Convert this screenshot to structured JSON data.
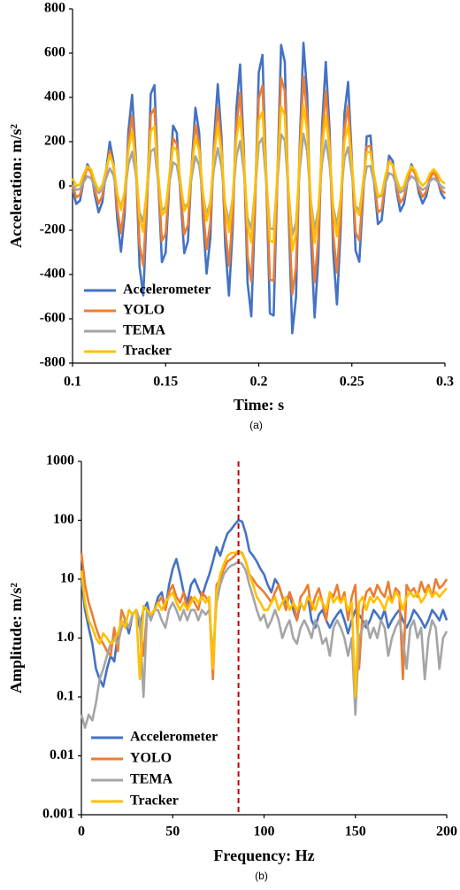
{
  "chart_data": [
    {
      "type": "line",
      "caption": "(a)",
      "x_label": "Time: s",
      "y_label": "Acceleration: m/s²",
      "xlim": [
        0.1,
        0.3
      ],
      "xticks": [
        0.1,
        0.15,
        0.2,
        0.25,
        0.3
      ],
      "ylim": [
        -800,
        800
      ],
      "yticks": [
        -800,
        -600,
        -400,
        -200,
        0,
        200,
        400,
        600,
        800
      ],
      "grid": false,
      "log_y": false,
      "legend": "lower-left",
      "x": [
        0.1,
        0.102,
        0.104,
        0.106,
        0.108,
        0.11,
        0.112,
        0.114,
        0.116,
        0.118,
        0.12,
        0.122,
        0.124,
        0.126,
        0.128,
        0.13,
        0.132,
        0.134,
        0.136,
        0.138,
        0.14,
        0.142,
        0.144,
        0.146,
        0.148,
        0.15,
        0.152,
        0.154,
        0.156,
        0.158,
        0.16,
        0.162,
        0.164,
        0.166,
        0.168,
        0.17,
        0.172,
        0.174,
        0.176,
        0.178,
        0.18,
        0.182,
        0.184,
        0.186,
        0.188,
        0.19,
        0.192,
        0.194,
        0.196,
        0.198,
        0.2,
        0.202,
        0.204,
        0.206,
        0.208,
        0.21,
        0.212,
        0.214,
        0.216,
        0.218,
        0.22,
        0.222,
        0.224,
        0.226,
        0.228,
        0.23,
        0.232,
        0.234,
        0.236,
        0.238,
        0.24,
        0.242,
        0.244,
        0.246,
        0.248,
        0.25,
        0.252,
        0.254,
        0.256,
        0.258,
        0.26,
        0.262,
        0.264,
        0.266,
        0.268,
        0.27,
        0.272,
        0.274,
        0.276,
        0.278,
        0.28,
        0.282,
        0.284,
        0.286,
        0.288,
        0.29,
        0.292,
        0.294,
        0.296,
        0.298,
        0.3
      ],
      "series": [
        {
          "name": "Accelerometer",
          "color": "#4472c4",
          "values": [
            -13,
            -81,
            -66,
            26,
            98,
            68,
            -41,
            -119,
            -73,
            66,
            200,
            108,
            -146,
            -297,
            -126,
            247,
            412,
            124,
            -365,
            -494,
            -83,
            416,
            455,
            27,
            -344,
            -301,
            16,
            273,
            240,
            -48,
            -304,
            -248,
            95,
            353,
            241,
            -141,
            -396,
            -235,
            207,
            460,
            221,
            -269,
            -495,
            -192,
            351,
            549,
            157,
            -438,
            -589,
            -101,
            512,
            592,
            40,
            -576,
            -585,
            35,
            637,
            560,
            -112,
            -665,
            -504,
            184,
            647,
            416,
            -229,
            -594,
            -325,
            268,
            560,
            259,
            -302,
            -535,
            -192,
            325,
            470,
            119,
            -292,
            -342,
            -51,
            224,
            228,
            13,
            -172,
            -155,
            8,
            137,
            112,
            -21,
            -114,
            -80,
            27,
            98,
            59,
            -33,
            -79,
            -45,
            33,
            70,
            28,
            -34,
            -59
          ]
        },
        {
          "name": "YOLO",
          "color": "#ed7d31",
          "values": [
            0,
            -51,
            -40,
            30,
            84,
            61,
            -21,
            -79,
            -45,
            60,
            160,
            91,
            -100,
            -213,
            -85,
            195,
            319,
            103,
            -264,
            -361,
            -52,
            322,
            351,
            30,
            -248,
            -216,
            22,
            215,
            190,
            -26,
            -218,
            -176,
            81,
            275,
            191,
            -96,
            -287,
            -166,
            165,
            355,
            176,
            -192,
            -361,
            -134,
            273,
            422,
            128,
            -319,
            -432,
            -66,
            394,
            454,
            40,
            -422,
            -429,
            36,
            488,
            430,
            -74,
            -489,
            -368,
            148,
            495,
            322,
            -162,
            -436,
            -234,
            211,
            430,
            204,
            -217,
            -391,
            -134,
            254,
            363,
            99,
            -209,
            -247,
            -28,
            178,
            181,
            20,
            -119,
            -106,
            16,
            113,
            94,
            -6,
            -76,
            -50,
            30,
            84,
            54,
            -15,
            -49,
            -24,
            35,
            63,
            31,
            -16,
            -34
          ]
        },
        {
          "name": "TEMA",
          "color": "#a5a5a5",
          "values": [
            5,
            -18,
            -13,
            19,
            44,
            34,
            -4,
            -32,
            -16,
            33,
            80,
            48,
            -41,
            -94,
            -34,
            96,
            154,
            53,
            -118,
            -163,
            -19,
            156,
            169,
            19,
            -110,
            -95,
            16,
            106,
            94,
            -7,
            -96,
            -77,
            43,
            134,
            94,
            -39,
            -129,
            -72,
            82,
            171,
            87,
            -84,
            -163,
            -57,
            133,
            202,
            65,
            -143,
            -196,
            -25,
            189,
            217,
            24,
            -192,
            -195,
            22,
            233,
            206,
            -29,
            -223,
            -166,
            74,
            236,
            156,
            -70,
            -198,
            -104,
            104,
            206,
            101,
            -96,
            -177,
            -57,
            124,
            175,
            52,
            -92,
            -110,
            -8,
            88,
            90,
            15,
            -50,
            -44,
            13,
            58,
            49,
            3,
            -30,
            -18,
            19,
            44,
            31,
            -2,
            -18,
            -6,
            22,
            35,
            20,
            -2,
            -11
          ]
        },
        {
          "name": "Tracker",
          "color": "#ffc000",
          "values": [
            34,
            0,
            7,
            53,
            89,
            74,
            20,
            -20,
            4,
            73,
            140,
            94,
            -33,
            -109,
            -23,
            164,
            246,
            102,
            -143,
            -207,
            -2,
            248,
            268,
            54,
            -132,
            -111,
            48,
            177,
            160,
            16,
            -112,
            -84,
            88,
            217,
            161,
            -31,
            -158,
            -78,
            144,
            270,
            151,
            -95,
            -208,
            -56,
            216,
            315,
            119,
            -179,
            -255,
            -11,
            296,
            336,
            60,
            -248,
            -253,
            58,
            359,
            320,
            -16,
            -293,
            -212,
            132,
            364,
            248,
            -75,
            -257,
            -123,
            174,
            320,
            170,
            -111,
            -228,
            -56,
            203,
            275,
            100,
            -106,
            -131,
            15,
            152,
            154,
            47,
            -46,
            -38,
            44,
            109,
            96,
            30,
            -17,
            0,
            54,
            89,
            70,
            24,
            1,
            18,
            57,
            75,
            54,
            23,
            11
          ]
        }
      ]
    },
    {
      "type": "line",
      "caption": "(b)",
      "x_label": "Frequency: Hz",
      "y_label": "Amplitude: m/s²",
      "xlim": [
        0,
        200
      ],
      "xticks": [
        0,
        50,
        100,
        150,
        200
      ],
      "ylim": [
        0.001,
        1000
      ],
      "yticks": [
        0.001,
        0.01,
        0.1,
        {
          "value": 1,
          "label": "1.0"
        },
        10,
        100,
        1000
      ],
      "grid": false,
      "log_y": true,
      "legend": "lower-left",
      "reference_line": {
        "x": 86,
        "color": "#c00000"
      },
      "x": [
        0,
        2,
        4,
        6,
        8,
        10,
        12,
        14,
        16,
        18,
        20,
        22,
        24,
        26,
        28,
        30,
        32,
        34,
        36,
        38,
        40,
        42,
        44,
        46,
        48,
        50,
        52,
        54,
        56,
        58,
        60,
        62,
        64,
        66,
        68,
        70,
        72,
        74,
        76,
        78,
        80,
        82,
        84,
        86,
        88,
        90,
        92,
        94,
        96,
        98,
        100,
        102,
        104,
        106,
        108,
        110,
        112,
        114,
        116,
        118,
        120,
        122,
        124,
        126,
        128,
        130,
        132,
        134,
        136,
        138,
        140,
        142,
        144,
        146,
        148,
        150,
        152,
        154,
        156,
        158,
        160,
        162,
        164,
        166,
        168,
        170,
        172,
        174,
        176,
        178,
        180,
        182,
        184,
        186,
        188,
        190,
        192,
        194,
        196,
        198,
        200
      ],
      "series": [
        {
          "name": "Accelerometer",
          "color": "#4472c4",
          "values": [
            10,
            3,
            1.5,
            0.8,
            0.3,
            0.2,
            0.15,
            0.3,
            0.5,
            0.4,
            1.2,
            1.5,
            2,
            1.2,
            2.5,
            3,
            1.5,
            3,
            4,
            2,
            3,
            5,
            6,
            3,
            8,
            15,
            22,
            12,
            6,
            4,
            8,
            10,
            7,
            5,
            8,
            12,
            20,
            35,
            25,
            40,
            60,
            70,
            85,
            100,
            95,
            60,
            30,
            25,
            20,
            15,
            12,
            8,
            6,
            10,
            8,
            5,
            4,
            6,
            3,
            2,
            4,
            3,
            5,
            2,
            1.5,
            2.5,
            3,
            2,
            1.5,
            2,
            2.5,
            3,
            2,
            1.2,
            2,
            3,
            2.5,
            2,
            1.5,
            2,
            3,
            2.5,
            2,
            3,
            1.5,
            2,
            2.5,
            3,
            2,
            1.5,
            2,
            3,
            2.5,
            2,
            1.5,
            2,
            3,
            2.5,
            2,
            3,
            2
          ]
        },
        {
          "name": "YOLO",
          "color": "#ed7d31",
          "values": [
            28,
            8,
            4,
            2.5,
            1.5,
            1,
            0.8,
            0.6,
            0.5,
            1.5,
            0.6,
            3,
            2,
            1.5,
            2.5,
            3,
            2,
            0.5,
            3,
            2.5,
            3,
            4,
            5,
            3,
            6,
            8,
            5,
            4,
            6,
            3,
            5,
            4,
            3,
            6,
            5,
            4,
            0.2,
            8,
            10,
            15,
            20,
            22,
            25,
            30,
            28,
            20,
            12,
            10,
            8,
            7,
            6,
            5,
            4,
            6,
            8,
            5,
            3,
            6,
            4,
            2,
            5,
            6,
            8,
            3,
            5,
            7,
            4,
            2,
            6,
            5,
            8,
            4,
            6,
            2,
            5,
            8,
            0.3,
            3,
            6,
            7,
            5,
            8,
            6,
            5,
            9,
            4,
            7,
            6,
            0.2,
            8,
            6,
            7,
            5,
            9,
            6,
            8,
            5,
            10,
            7,
            8,
            10
          ]
        },
        {
          "name": "TEMA",
          "color": "#a5a5a5",
          "values": [
            0.05,
            0.03,
            0.05,
            0.04,
            0.08,
            0.2,
            0.3,
            0.5,
            0.8,
            1,
            0.8,
            1.5,
            2,
            1.5,
            2.5,
            3,
            2,
            0.1,
            3,
            2,
            3,
            3,
            2,
            1.5,
            3,
            4,
            3,
            2,
            3,
            2,
            3,
            3,
            2,
            3,
            2.5,
            3,
            0.5,
            4,
            8,
            12,
            15,
            17,
            18,
            20,
            18,
            14,
            8,
            5,
            3,
            2,
            2.5,
            1.5,
            2,
            3,
            2,
            1,
            1.5,
            2,
            1,
            0.8,
            1.5,
            2,
            1.5,
            1,
            2,
            1.5,
            0.8,
            1,
            0.5,
            1.5,
            2,
            1.5,
            1,
            0.5,
            1,
            0.05,
            1,
            1.5,
            2,
            1,
            1.5,
            1,
            2,
            1.5,
            0.5,
            1,
            1.5,
            2,
            1,
            0.3,
            1.5,
            2,
            1,
            1.5,
            0.2,
            1,
            2,
            1.5,
            0.3,
            1,
            1.3
          ]
        },
        {
          "name": "Tracker",
          "color": "#ffc000",
          "values": [
            14,
            4,
            2,
            1.5,
            1,
            0.8,
            1.2,
            1,
            0.8,
            0.9,
            1.2,
            2,
            1.5,
            3,
            2.5,
            3,
            0.2,
            3.5,
            3,
            2.5,
            3,
            4,
            3,
            4,
            5,
            6,
            4,
            3,
            4,
            3,
            4,
            5,
            4,
            5,
            4,
            5,
            0.3,
            6,
            12,
            18,
            25,
            28,
            28,
            30,
            27,
            20,
            12,
            8,
            5,
            4,
            3,
            3,
            4,
            5,
            3,
            4,
            5,
            3,
            4,
            3,
            4,
            3,
            5,
            4,
            3,
            5,
            4,
            3,
            6,
            4,
            5,
            4,
            5,
            3,
            4,
            0.1,
            4,
            5,
            3,
            5,
            4,
            5,
            4,
            3,
            5,
            4,
            6,
            5,
            3,
            5,
            6,
            5,
            6,
            4,
            5,
            7,
            5,
            6,
            5,
            6,
            7
          ]
        }
      ]
    }
  ]
}
